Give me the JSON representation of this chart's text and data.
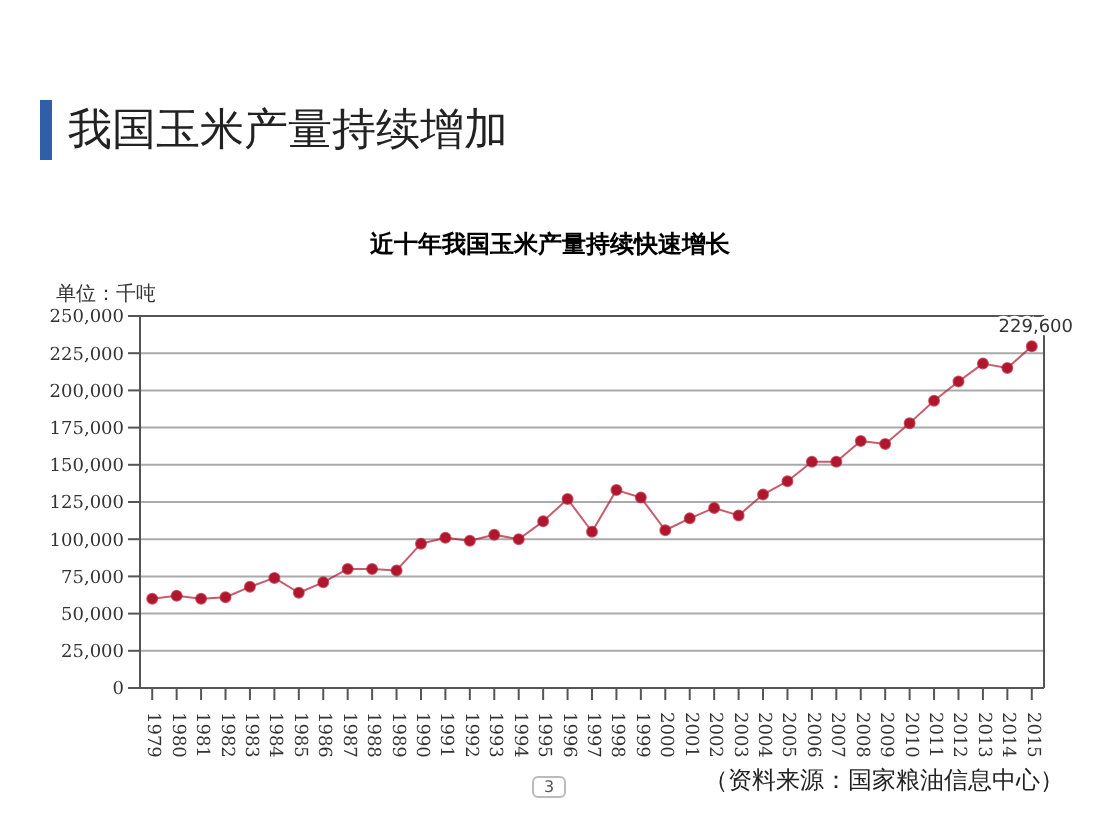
{
  "chart_data": {
    "type": "line",
    "title": "我国玉米产量持续增加",
    "subtitle": "近十年我国玉米产量持续快速增长",
    "ylabel": "单位：千吨",
    "annotations": [
      "（资料来源：国家粮油信息中心）",
      "3"
    ],
    "categories": [
      "1979",
      "1980",
      "1981",
      "1982",
      "1983",
      "1984",
      "1985",
      "1986",
      "1987",
      "1988",
      "1989",
      "1990",
      "1991",
      "1992",
      "1993",
      "1994",
      "1995",
      "1996",
      "1997",
      "1998",
      "1999",
      "2000",
      "2001",
      "2002",
      "2003",
      "2004",
      "2005",
      "2006",
      "2007",
      "2008",
      "2009",
      "2010",
      "2011",
      "2012",
      "2013",
      "2014",
      "2015"
    ],
    "series": [
      {
        "color": "#b0172e",
        "values": [
          60000,
          62000,
          60000,
          61000,
          68000,
          74000,
          64000,
          71000,
          80000,
          80000,
          79000,
          97000,
          101000,
          99000,
          103000,
          100000,
          112000,
          127000,
          105000,
          133000,
          128000,
          106000,
          114000,
          121000,
          116000,
          130000,
          139000,
          152000,
          152000,
          166000,
          164000,
          178000,
          193000,
          206000,
          218000,
          215000,
          229600
        ],
        "value_labels": [
          null,
          null,
          null,
          null,
          null,
          null,
          null,
          null,
          null,
          null,
          null,
          null,
          null,
          null,
          null,
          null,
          null,
          null,
          null,
          null,
          null,
          null,
          null,
          null,
          null,
          null,
          null,
          null,
          null,
          null,
          null,
          null,
          null,
          null,
          null,
          null,
          "229,600"
        ]
      }
    ],
    "ylim": [
      0,
      250000
    ],
    "yticks": [
      {
        "value": 0,
        "label": "0"
      },
      {
        "value": 25000,
        "label": "25,000"
      },
      {
        "value": 50000,
        "label": "50,000"
      },
      {
        "value": 75000,
        "label": "75,000"
      },
      {
        "value": 100000,
        "label": "100,000"
      },
      {
        "value": 125000,
        "label": "125,000"
      },
      {
        "value": 150000,
        "label": "150,000"
      },
      {
        "value": 175000,
        "label": "175,000"
      },
      {
        "value": 200000,
        "label": "200,000"
      },
      {
        "value": 225000,
        "label": "225,000"
      },
      {
        "value": 250000,
        "label": "250,000"
      }
    ],
    "grid": "y",
    "marker": "circle",
    "line_style": "solid"
  }
}
